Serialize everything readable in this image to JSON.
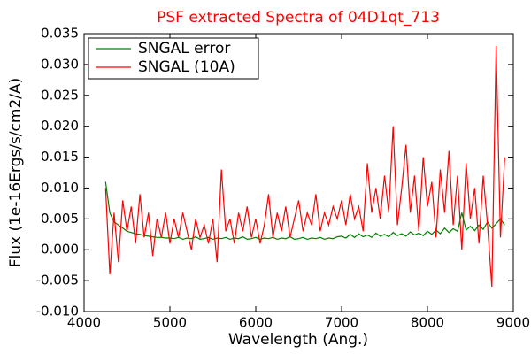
{
  "chart_data": {
    "type": "line",
    "title": "PSF extracted Spectra of 04D1qt_713",
    "xlabel": "Wavelength (Ang.)",
    "ylabel": "Flux (1e-16Ergs/s/cm2/A)",
    "legend": "upper left",
    "x": [
      4250,
      4300,
      4350,
      4400,
      4450,
      4500,
      4550,
      4600,
      4650,
      4700,
      4750,
      4800,
      4850,
      4900,
      4950,
      5000,
      5050,
      5100,
      5150,
      5200,
      5250,
      5300,
      5350,
      5400,
      5450,
      5500,
      5550,
      5600,
      5650,
      5700,
      5750,
      5800,
      5850,
      5900,
      5950,
      6000,
      6050,
      6100,
      6150,
      6200,
      6250,
      6300,
      6350,
      6400,
      6450,
      6500,
      6550,
      6600,
      6650,
      6700,
      6750,
      6800,
      6850,
      6900,
      6950,
      7000,
      7050,
      7100,
      7150,
      7200,
      7250,
      7300,
      7350,
      7400,
      7450,
      7500,
      7550,
      7600,
      7650,
      7700,
      7750,
      7800,
      7850,
      7900,
      7950,
      8000,
      8050,
      8100,
      8150,
      8200,
      8250,
      8300,
      8350,
      8400,
      8450,
      8500,
      8550,
      8600,
      8650,
      8700,
      8750,
      8800,
      8850,
      8900
    ],
    "series": [
      {
        "name": "SNGAL error",
        "color": "#008000",
        "values": [
          0.011,
          0.006,
          0.0045,
          0.004,
          0.0035,
          0.003,
          0.0028,
          0.0026,
          0.0025,
          0.0023,
          0.0022,
          0.0021,
          0.002,
          0.002,
          0.0019,
          0.0019,
          0.0018,
          0.002,
          0.0017,
          0.0019,
          0.0018,
          0.0021,
          0.0017,
          0.0018,
          0.002,
          0.0017,
          0.0019,
          0.0018,
          0.002,
          0.0017,
          0.0019,
          0.0018,
          0.0021,
          0.0017,
          0.0018,
          0.002,
          0.0017,
          0.0019,
          0.0018,
          0.002,
          0.0017,
          0.0019,
          0.0018,
          0.0021,
          0.0017,
          0.0018,
          0.002,
          0.0017,
          0.0019,
          0.0018,
          0.002,
          0.0017,
          0.0019,
          0.0018,
          0.0021,
          0.0022,
          0.0019,
          0.0025,
          0.002,
          0.0026,
          0.0021,
          0.0024,
          0.002,
          0.0027,
          0.0022,
          0.0025,
          0.0021,
          0.0028,
          0.0023,
          0.0026,
          0.0022,
          0.0029,
          0.0024,
          0.0027,
          0.0023,
          0.003,
          0.0025,
          0.0032,
          0.0026,
          0.0035,
          0.0028,
          0.0034,
          0.003,
          0.006,
          0.0032,
          0.0038,
          0.0031,
          0.004,
          0.0033,
          0.0045,
          0.0035,
          0.0042,
          0.005,
          0.004
        ]
      },
      {
        "name": "SNGAL (10A)",
        "color": "#ff0000",
        "values": [
          0.01,
          -0.004,
          0.006,
          -0.002,
          0.008,
          0.003,
          0.007,
          0.001,
          0.009,
          0.002,
          0.006,
          -0.001,
          0.005,
          0.002,
          0.006,
          0.001,
          0.005,
          0.002,
          0.006,
          0.003,
          0.0,
          0.005,
          0.002,
          0.004,
          0.001,
          0.005,
          -0.002,
          0.013,
          0.003,
          0.005,
          0.001,
          0.006,
          0.003,
          0.007,
          0.002,
          0.005,
          0.001,
          0.004,
          0.009,
          0.002,
          0.006,
          0.003,
          0.007,
          0.002,
          0.005,
          0.008,
          0.003,
          0.006,
          0.004,
          0.009,
          0.003,
          0.006,
          0.004,
          0.007,
          0.005,
          0.008,
          0.004,
          0.009,
          0.005,
          0.007,
          0.003,
          0.014,
          0.006,
          0.01,
          0.005,
          0.012,
          0.006,
          0.02,
          0.004,
          0.01,
          0.017,
          0.006,
          0.012,
          0.003,
          0.015,
          0.007,
          0.011,
          0.002,
          0.013,
          0.006,
          0.016,
          0.004,
          0.012,
          0.0,
          0.014,
          0.005,
          0.01,
          0.001,
          0.012,
          0.004,
          -0.006,
          0.033,
          0.002,
          0.015
        ]
      }
    ],
    "xlim": [
      4000,
      9000
    ],
    "xticks": [
      4000,
      5000,
      6000,
      7000,
      8000,
      9000
    ],
    "ylim": [
      -0.01,
      0.035
    ],
    "yticks": [
      {
        "value": -0.01,
        "label": "-0.010"
      },
      {
        "value": -0.005,
        "label": "-0.005"
      },
      {
        "value": 0,
        "label": "0.000"
      },
      {
        "value": 0.005,
        "label": "0.005"
      },
      {
        "value": 0.01,
        "label": "0.010"
      },
      {
        "value": 0.015,
        "label": "0.015"
      },
      {
        "value": 0.02,
        "label": "0.020"
      },
      {
        "value": 0.025,
        "label": "0.025"
      },
      {
        "value": 0.03,
        "label": "0.030"
      },
      {
        "value": 0.035,
        "label": "0.035"
      }
    ]
  }
}
